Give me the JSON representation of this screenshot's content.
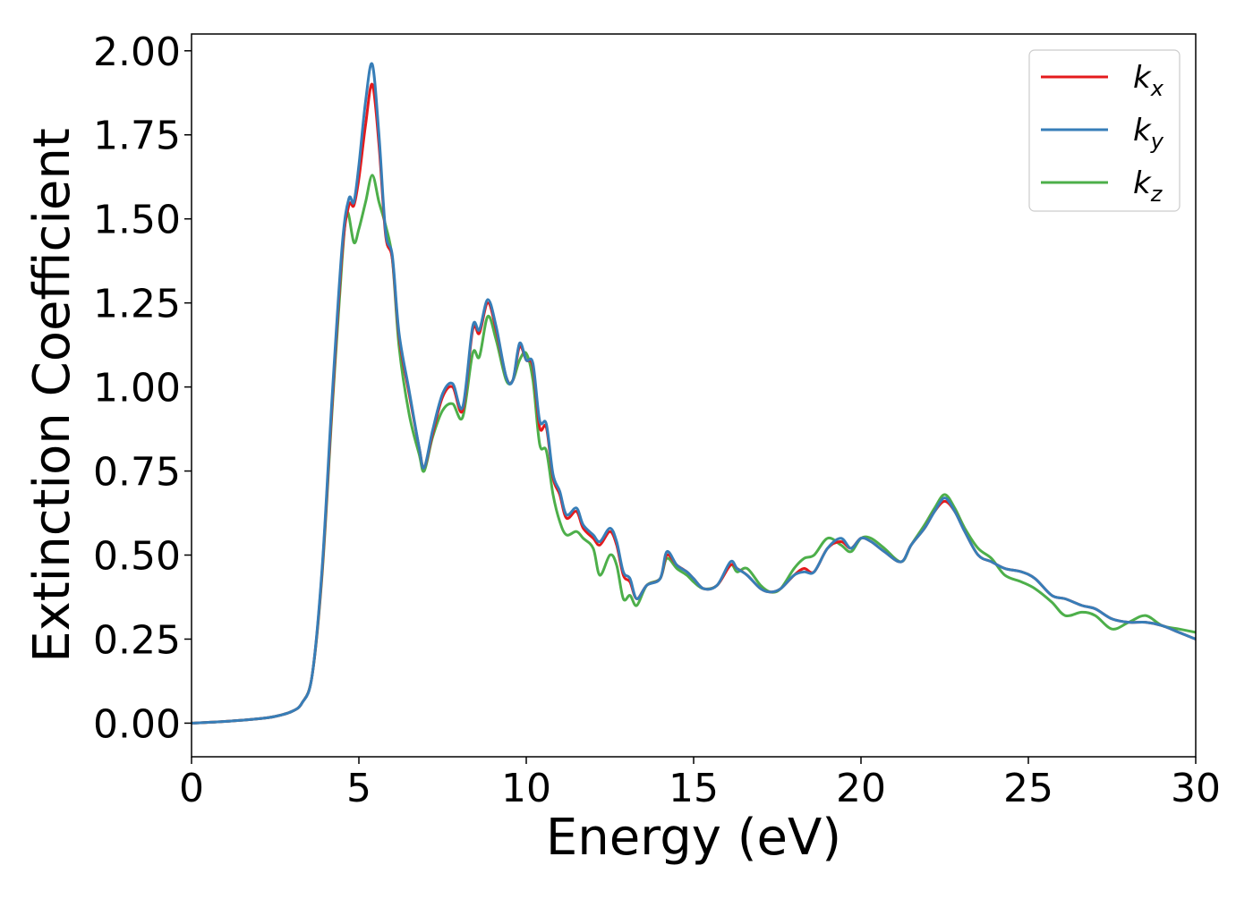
{
  "chart_data": {
    "type": "line",
    "title": "",
    "xlabel": "Energy (eV)",
    "ylabel": "Extinction Coefficient",
    "xlim": [
      0,
      30
    ],
    "ylim": [
      -0.1,
      2.05
    ],
    "xticks": [
      0,
      5,
      10,
      15,
      20,
      25,
      30
    ],
    "xtick_labels": [
      "0",
      "5",
      "10",
      "15",
      "20",
      "25",
      "30"
    ],
    "yticks": [
      0.0,
      0.25,
      0.5,
      0.75,
      1.0,
      1.25,
      1.5,
      1.75,
      2.0
    ],
    "ytick_labels": [
      "0.00",
      "0.25",
      "0.50",
      "0.75",
      "1.00",
      "1.25",
      "1.50",
      "1.75",
      "2.00"
    ],
    "grid": false,
    "legend_position": "top-right",
    "series": [
      {
        "name": "k_x",
        "label_main": "k",
        "label_sub": "x",
        "color": "#e41a1c",
        "points": [
          [
            0,
            0
          ],
          [
            1,
            0.005
          ],
          [
            2,
            0.013
          ],
          [
            2.5,
            0.02
          ],
          [
            3,
            0.035
          ],
          [
            3.3,
            0.06
          ],
          [
            3.6,
            0.14
          ],
          [
            3.9,
            0.45
          ],
          [
            4.2,
            0.95
          ],
          [
            4.5,
            1.4
          ],
          [
            4.7,
            1.54
          ],
          [
            4.85,
            1.54
          ],
          [
            5.0,
            1.62
          ],
          [
            5.2,
            1.78
          ],
          [
            5.4,
            1.9
          ],
          [
            5.6,
            1.72
          ],
          [
            5.8,
            1.45
          ],
          [
            6.0,
            1.38
          ],
          [
            6.2,
            1.15
          ],
          [
            6.5,
            0.98
          ],
          [
            6.8,
            0.82
          ],
          [
            6.95,
            0.76
          ],
          [
            7.2,
            0.86
          ],
          [
            7.5,
            0.97
          ],
          [
            7.8,
            1.0
          ],
          [
            8.1,
            0.93
          ],
          [
            8.4,
            1.17
          ],
          [
            8.6,
            1.16
          ],
          [
            8.85,
            1.25
          ],
          [
            9.1,
            1.17
          ],
          [
            9.4,
            1.03
          ],
          [
            9.6,
            1.02
          ],
          [
            9.8,
            1.12
          ],
          [
            10.0,
            1.08
          ],
          [
            10.2,
            1.06
          ],
          [
            10.4,
            0.88
          ],
          [
            10.6,
            0.88
          ],
          [
            10.8,
            0.73
          ],
          [
            11.0,
            0.68
          ],
          [
            11.2,
            0.61
          ],
          [
            11.5,
            0.63
          ],
          [
            11.7,
            0.58
          ],
          [
            12.0,
            0.55
          ],
          [
            12.2,
            0.53
          ],
          [
            12.5,
            0.57
          ],
          [
            12.7,
            0.53
          ],
          [
            12.9,
            0.44
          ],
          [
            13.1,
            0.42
          ],
          [
            13.3,
            0.37
          ],
          [
            13.6,
            0.41
          ],
          [
            14.0,
            0.43
          ],
          [
            14.2,
            0.5
          ],
          [
            14.5,
            0.47
          ],
          [
            14.8,
            0.45
          ],
          [
            15.0,
            0.43
          ],
          [
            15.3,
            0.4
          ],
          [
            15.7,
            0.41
          ],
          [
            16.1,
            0.47
          ],
          [
            16.3,
            0.46
          ],
          [
            16.6,
            0.44
          ],
          [
            17.0,
            0.4
          ],
          [
            17.3,
            0.39
          ],
          [
            17.6,
            0.4
          ],
          [
            18.0,
            0.44
          ],
          [
            18.3,
            0.46
          ],
          [
            18.6,
            0.45
          ],
          [
            19.0,
            0.52
          ],
          [
            19.4,
            0.54
          ],
          [
            19.7,
            0.52
          ],
          [
            20.0,
            0.55
          ],
          [
            20.3,
            0.54
          ],
          [
            20.7,
            0.51
          ],
          [
            21.2,
            0.48
          ],
          [
            21.5,
            0.53
          ],
          [
            21.9,
            0.58
          ],
          [
            22.2,
            0.63
          ],
          [
            22.5,
            0.66
          ],
          [
            22.8,
            0.63
          ],
          [
            23.1,
            0.57
          ],
          [
            23.5,
            0.5
          ],
          [
            23.9,
            0.48
          ],
          [
            24.3,
            0.46
          ],
          [
            24.8,
            0.45
          ],
          [
            25.2,
            0.43
          ],
          [
            25.7,
            0.38
          ],
          [
            26.1,
            0.37
          ],
          [
            26.6,
            0.35
          ],
          [
            27.0,
            0.34
          ],
          [
            27.5,
            0.31
          ],
          [
            28.0,
            0.3
          ],
          [
            28.5,
            0.3
          ],
          [
            29.0,
            0.29
          ],
          [
            29.5,
            0.27
          ],
          [
            30.0,
            0.25
          ]
        ]
      },
      {
        "name": "k_y",
        "label_main": "k",
        "label_sub": "y",
        "color": "#377eb8",
        "points": [
          [
            0,
            0
          ],
          [
            1,
            0.005
          ],
          [
            2,
            0.013
          ],
          [
            2.5,
            0.02
          ],
          [
            3,
            0.035
          ],
          [
            3.3,
            0.06
          ],
          [
            3.6,
            0.14
          ],
          [
            3.9,
            0.46
          ],
          [
            4.2,
            0.97
          ],
          [
            4.5,
            1.42
          ],
          [
            4.7,
            1.56
          ],
          [
            4.85,
            1.55
          ],
          [
            5.0,
            1.66
          ],
          [
            5.2,
            1.85
          ],
          [
            5.4,
            1.96
          ],
          [
            5.6,
            1.75
          ],
          [
            5.8,
            1.46
          ],
          [
            6.0,
            1.39
          ],
          [
            6.2,
            1.16
          ],
          [
            6.5,
            0.99
          ],
          [
            6.8,
            0.82
          ],
          [
            6.95,
            0.76
          ],
          [
            7.2,
            0.87
          ],
          [
            7.5,
            0.98
          ],
          [
            7.8,
            1.01
          ],
          [
            8.1,
            0.94
          ],
          [
            8.4,
            1.18
          ],
          [
            8.6,
            1.17
          ],
          [
            8.85,
            1.26
          ],
          [
            9.1,
            1.18
          ],
          [
            9.4,
            1.03
          ],
          [
            9.6,
            1.02
          ],
          [
            9.8,
            1.13
          ],
          [
            10.0,
            1.08
          ],
          [
            10.2,
            1.07
          ],
          [
            10.4,
            0.9
          ],
          [
            10.6,
            0.89
          ],
          [
            10.8,
            0.74
          ],
          [
            11.0,
            0.69
          ],
          [
            11.2,
            0.62
          ],
          [
            11.5,
            0.64
          ],
          [
            11.7,
            0.59
          ],
          [
            12.0,
            0.56
          ],
          [
            12.2,
            0.54
          ],
          [
            12.5,
            0.58
          ],
          [
            12.7,
            0.54
          ],
          [
            12.9,
            0.45
          ],
          [
            13.1,
            0.43
          ],
          [
            13.3,
            0.37
          ],
          [
            13.6,
            0.41
          ],
          [
            14.0,
            0.43
          ],
          [
            14.2,
            0.51
          ],
          [
            14.5,
            0.47
          ],
          [
            14.8,
            0.45
          ],
          [
            15.0,
            0.43
          ],
          [
            15.3,
            0.4
          ],
          [
            15.7,
            0.41
          ],
          [
            16.1,
            0.48
          ],
          [
            16.3,
            0.46
          ],
          [
            16.6,
            0.44
          ],
          [
            17.0,
            0.4
          ],
          [
            17.3,
            0.39
          ],
          [
            17.6,
            0.4
          ],
          [
            18.0,
            0.44
          ],
          [
            18.3,
            0.45
          ],
          [
            18.6,
            0.45
          ],
          [
            19.0,
            0.52
          ],
          [
            19.4,
            0.55
          ],
          [
            19.7,
            0.52
          ],
          [
            20.0,
            0.55
          ],
          [
            20.3,
            0.54
          ],
          [
            20.7,
            0.51
          ],
          [
            21.2,
            0.48
          ],
          [
            21.5,
            0.53
          ],
          [
            21.9,
            0.58
          ],
          [
            22.2,
            0.63
          ],
          [
            22.5,
            0.67
          ],
          [
            22.8,
            0.63
          ],
          [
            23.1,
            0.57
          ],
          [
            23.5,
            0.5
          ],
          [
            23.9,
            0.48
          ],
          [
            24.3,
            0.46
          ],
          [
            24.8,
            0.45
          ],
          [
            25.2,
            0.43
          ],
          [
            25.7,
            0.38
          ],
          [
            26.1,
            0.37
          ],
          [
            26.6,
            0.35
          ],
          [
            27.0,
            0.34
          ],
          [
            27.5,
            0.31
          ],
          [
            28.0,
            0.3
          ],
          [
            28.5,
            0.3
          ],
          [
            29.0,
            0.29
          ],
          [
            29.5,
            0.27
          ],
          [
            30.0,
            0.25
          ]
        ]
      },
      {
        "name": "k_z",
        "label_main": "k",
        "label_sub": "z",
        "color": "#4daf4a",
        "points": [
          [
            0,
            0
          ],
          [
            1,
            0.005
          ],
          [
            2,
            0.013
          ],
          [
            2.5,
            0.02
          ],
          [
            3,
            0.035
          ],
          [
            3.3,
            0.06
          ],
          [
            3.6,
            0.14
          ],
          [
            3.9,
            0.44
          ],
          [
            4.2,
            0.93
          ],
          [
            4.5,
            1.38
          ],
          [
            4.65,
            1.52
          ],
          [
            4.85,
            1.43
          ],
          [
            5.0,
            1.47
          ],
          [
            5.2,
            1.55
          ],
          [
            5.4,
            1.63
          ],
          [
            5.6,
            1.55
          ],
          [
            5.8,
            1.48
          ],
          [
            6.0,
            1.38
          ],
          [
            6.2,
            1.12
          ],
          [
            6.5,
            0.92
          ],
          [
            6.8,
            0.8
          ],
          [
            6.95,
            0.75
          ],
          [
            7.2,
            0.85
          ],
          [
            7.5,
            0.93
          ],
          [
            7.8,
            0.95
          ],
          [
            8.1,
            0.91
          ],
          [
            8.4,
            1.1
          ],
          [
            8.6,
            1.09
          ],
          [
            8.85,
            1.21
          ],
          [
            9.1,
            1.14
          ],
          [
            9.4,
            1.02
          ],
          [
            9.6,
            1.02
          ],
          [
            9.8,
            1.08
          ],
          [
            10.0,
            1.1
          ],
          [
            10.2,
            1.02
          ],
          [
            10.4,
            0.83
          ],
          [
            10.6,
            0.81
          ],
          [
            10.8,
            0.68
          ],
          [
            11.0,
            0.6
          ],
          [
            11.2,
            0.56
          ],
          [
            11.5,
            0.57
          ],
          [
            11.7,
            0.55
          ],
          [
            12.0,
            0.52
          ],
          [
            12.2,
            0.44
          ],
          [
            12.5,
            0.5
          ],
          [
            12.7,
            0.47
          ],
          [
            12.9,
            0.37
          ],
          [
            13.1,
            0.38
          ],
          [
            13.3,
            0.35
          ],
          [
            13.6,
            0.41
          ],
          [
            14.0,
            0.43
          ],
          [
            14.2,
            0.49
          ],
          [
            14.5,
            0.46
          ],
          [
            14.8,
            0.44
          ],
          [
            15.0,
            0.42
          ],
          [
            15.3,
            0.4
          ],
          [
            15.7,
            0.41
          ],
          [
            16.1,
            0.47
          ],
          [
            16.3,
            0.45
          ],
          [
            16.6,
            0.46
          ],
          [
            17.0,
            0.41
          ],
          [
            17.3,
            0.39
          ],
          [
            17.6,
            0.4
          ],
          [
            18.0,
            0.46
          ],
          [
            18.3,
            0.49
          ],
          [
            18.6,
            0.5
          ],
          [
            19.0,
            0.55
          ],
          [
            19.4,
            0.53
          ],
          [
            19.7,
            0.51
          ],
          [
            20.0,
            0.55
          ],
          [
            20.3,
            0.55
          ],
          [
            20.7,
            0.52
          ],
          [
            21.2,
            0.48
          ],
          [
            21.5,
            0.53
          ],
          [
            21.9,
            0.59
          ],
          [
            22.2,
            0.64
          ],
          [
            22.5,
            0.68
          ],
          [
            22.8,
            0.64
          ],
          [
            23.1,
            0.58
          ],
          [
            23.5,
            0.52
          ],
          [
            23.9,
            0.49
          ],
          [
            24.3,
            0.44
          ],
          [
            24.8,
            0.42
          ],
          [
            25.2,
            0.4
          ],
          [
            25.7,
            0.36
          ],
          [
            26.1,
            0.32
          ],
          [
            26.6,
            0.33
          ],
          [
            27.0,
            0.32
          ],
          [
            27.5,
            0.28
          ],
          [
            28.0,
            0.3
          ],
          [
            28.5,
            0.32
          ],
          [
            29.0,
            0.29
          ],
          [
            29.5,
            0.28
          ],
          [
            30.0,
            0.27
          ]
        ]
      }
    ]
  }
}
